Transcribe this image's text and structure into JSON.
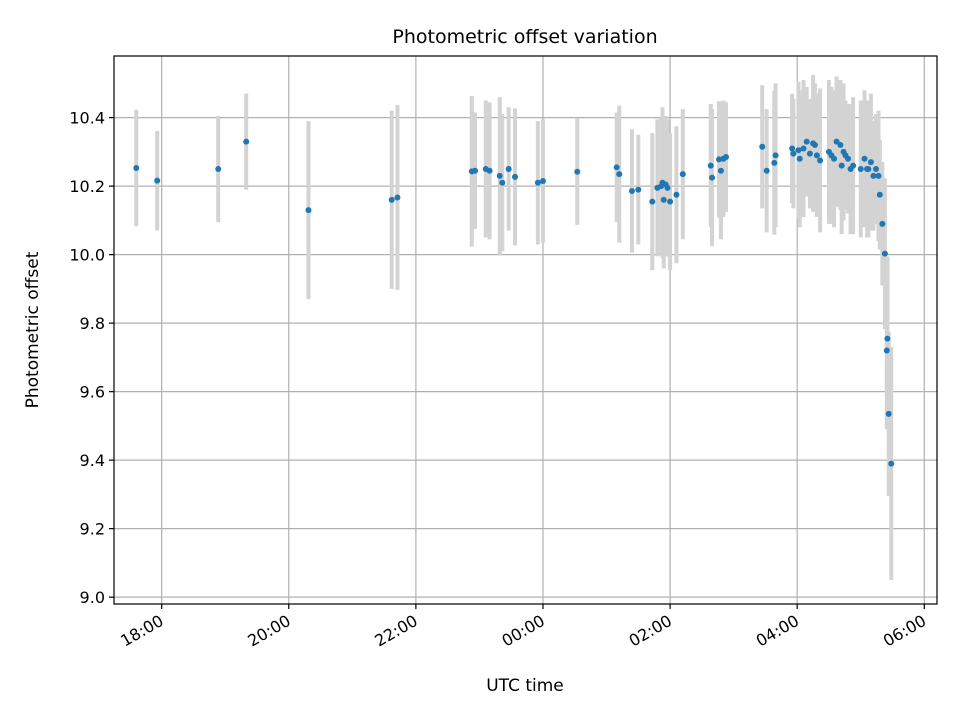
{
  "chart_data": {
    "type": "scatter",
    "title": "Photometric offset variation",
    "xlabel": "UTC time",
    "ylabel": "Photometric offset",
    "x_unit": "hours UTC",
    "xlim": [
      17.25,
      30.2
    ],
    "ylim": [
      8.98,
      10.58
    ],
    "grid": true,
    "x_ticks": [
      {
        "value": 18,
        "label": "18:00"
      },
      {
        "value": 20,
        "label": "20:00"
      },
      {
        "value": 22,
        "label": "22:00"
      },
      {
        "value": 24,
        "label": "00:00"
      },
      {
        "value": 26,
        "label": "02:00"
      },
      {
        "value": 28,
        "label": "04:00"
      },
      {
        "value": 30,
        "label": "06:00"
      }
    ],
    "y_ticks": [
      {
        "value": 9.0,
        "label": "9.0"
      },
      {
        "value": 9.2,
        "label": "9.2"
      },
      {
        "value": 9.4,
        "label": "9.4"
      },
      {
        "value": 9.6,
        "label": "9.6"
      },
      {
        "value": 9.8,
        "label": "9.8"
      },
      {
        "value": 10.0,
        "label": "10.0"
      },
      {
        "value": 10.2,
        "label": "10.2"
      },
      {
        "value": 10.4,
        "label": "10.4"
      }
    ],
    "colors": {
      "marker": "#1f77b4",
      "errorbar": "#d3d3d3",
      "grid": "#b0b0b0"
    },
    "series": [
      {
        "x": [
          17.6,
          17.93,
          18.89,
          19.33,
          20.31,
          21.62,
          21.71,
          22.88,
          22.93,
          23.1,
          23.16,
          23.32,
          23.36,
          23.46,
          23.56,
          23.92,
          24.0,
          24.54,
          25.16,
          25.2,
          25.4,
          25.5,
          25.72,
          25.8,
          25.86,
          25.88,
          25.9,
          25.93,
          25.96,
          26.0,
          26.1,
          26.2,
          26.64,
          26.66,
          26.77,
          26.8,
          26.84,
          26.88,
          27.45,
          27.52,
          27.64,
          27.66,
          27.92,
          27.94,
          28.02,
          28.04,
          28.1,
          28.15,
          28.2,
          28.25,
          28.28,
          28.31,
          28.36,
          28.5,
          28.54,
          28.58,
          28.62,
          28.68,
          28.7,
          28.73,
          28.76,
          28.8,
          28.84,
          28.88,
          29.0,
          29.06,
          29.1,
          29.12,
          29.16,
          29.2,
          29.24,
          29.28,
          29.3,
          29.34,
          29.38,
          29.41,
          29.42,
          29.44,
          29.48
        ],
        "y": [
          10.253,
          10.216,
          10.25,
          10.33,
          10.13,
          10.16,
          10.167,
          10.243,
          10.245,
          10.25,
          10.245,
          10.23,
          10.21,
          10.25,
          10.227,
          10.21,
          10.215,
          10.242,
          10.255,
          10.235,
          10.186,
          10.19,
          10.155,
          10.195,
          10.2,
          10.21,
          10.16,
          10.205,
          10.195,
          10.155,
          10.175,
          10.235,
          10.26,
          10.225,
          10.278,
          10.245,
          10.28,
          10.285,
          10.315,
          10.245,
          10.268,
          10.29,
          10.31,
          10.295,
          10.305,
          10.28,
          10.31,
          10.33,
          10.295,
          10.325,
          10.32,
          10.29,
          10.275,
          10.3,
          10.29,
          10.28,
          10.33,
          10.32,
          10.26,
          10.3,
          10.29,
          10.28,
          10.25,
          10.26,
          10.25,
          10.28,
          10.25,
          10.25,
          10.27,
          10.23,
          10.25,
          10.23,
          10.175,
          10.09,
          10.003,
          9.72,
          9.755,
          9.535,
          9.39
        ],
        "yerr": [
          0.17,
          0.145,
          0.155,
          0.14,
          0.26,
          0.26,
          0.27,
          0.22,
          0.17,
          0.2,
          0.2,
          0.23,
          0.2,
          0.18,
          0.2,
          0.18,
          0.18,
          0.155,
          0.16,
          0.2,
          0.18,
          0.16,
          0.2,
          0.2,
          0.2,
          0.22,
          0.2,
          0.2,
          0.2,
          0.2,
          0.2,
          0.19,
          0.18,
          0.2,
          0.17,
          0.2,
          0.17,
          0.16,
          0.18,
          0.18,
          0.21,
          0.21,
          0.16,
          0.16,
          0.2,
          0.2,
          0.2,
          0.16,
          0.16,
          0.2,
          0.18,
          0.18,
          0.21,
          0.21,
          0.2,
          0.2,
          0.19,
          0.19,
          0.2,
          0.2,
          0.16,
          0.16,
          0.19,
          0.2,
          0.2,
          0.2,
          0.2,
          0.2,
          0.2,
          0.16,
          0.16,
          0.19,
          0.16,
          0.18,
          0.22,
          0.23,
          0.24,
          0.24,
          0.34
        ]
      }
    ]
  }
}
